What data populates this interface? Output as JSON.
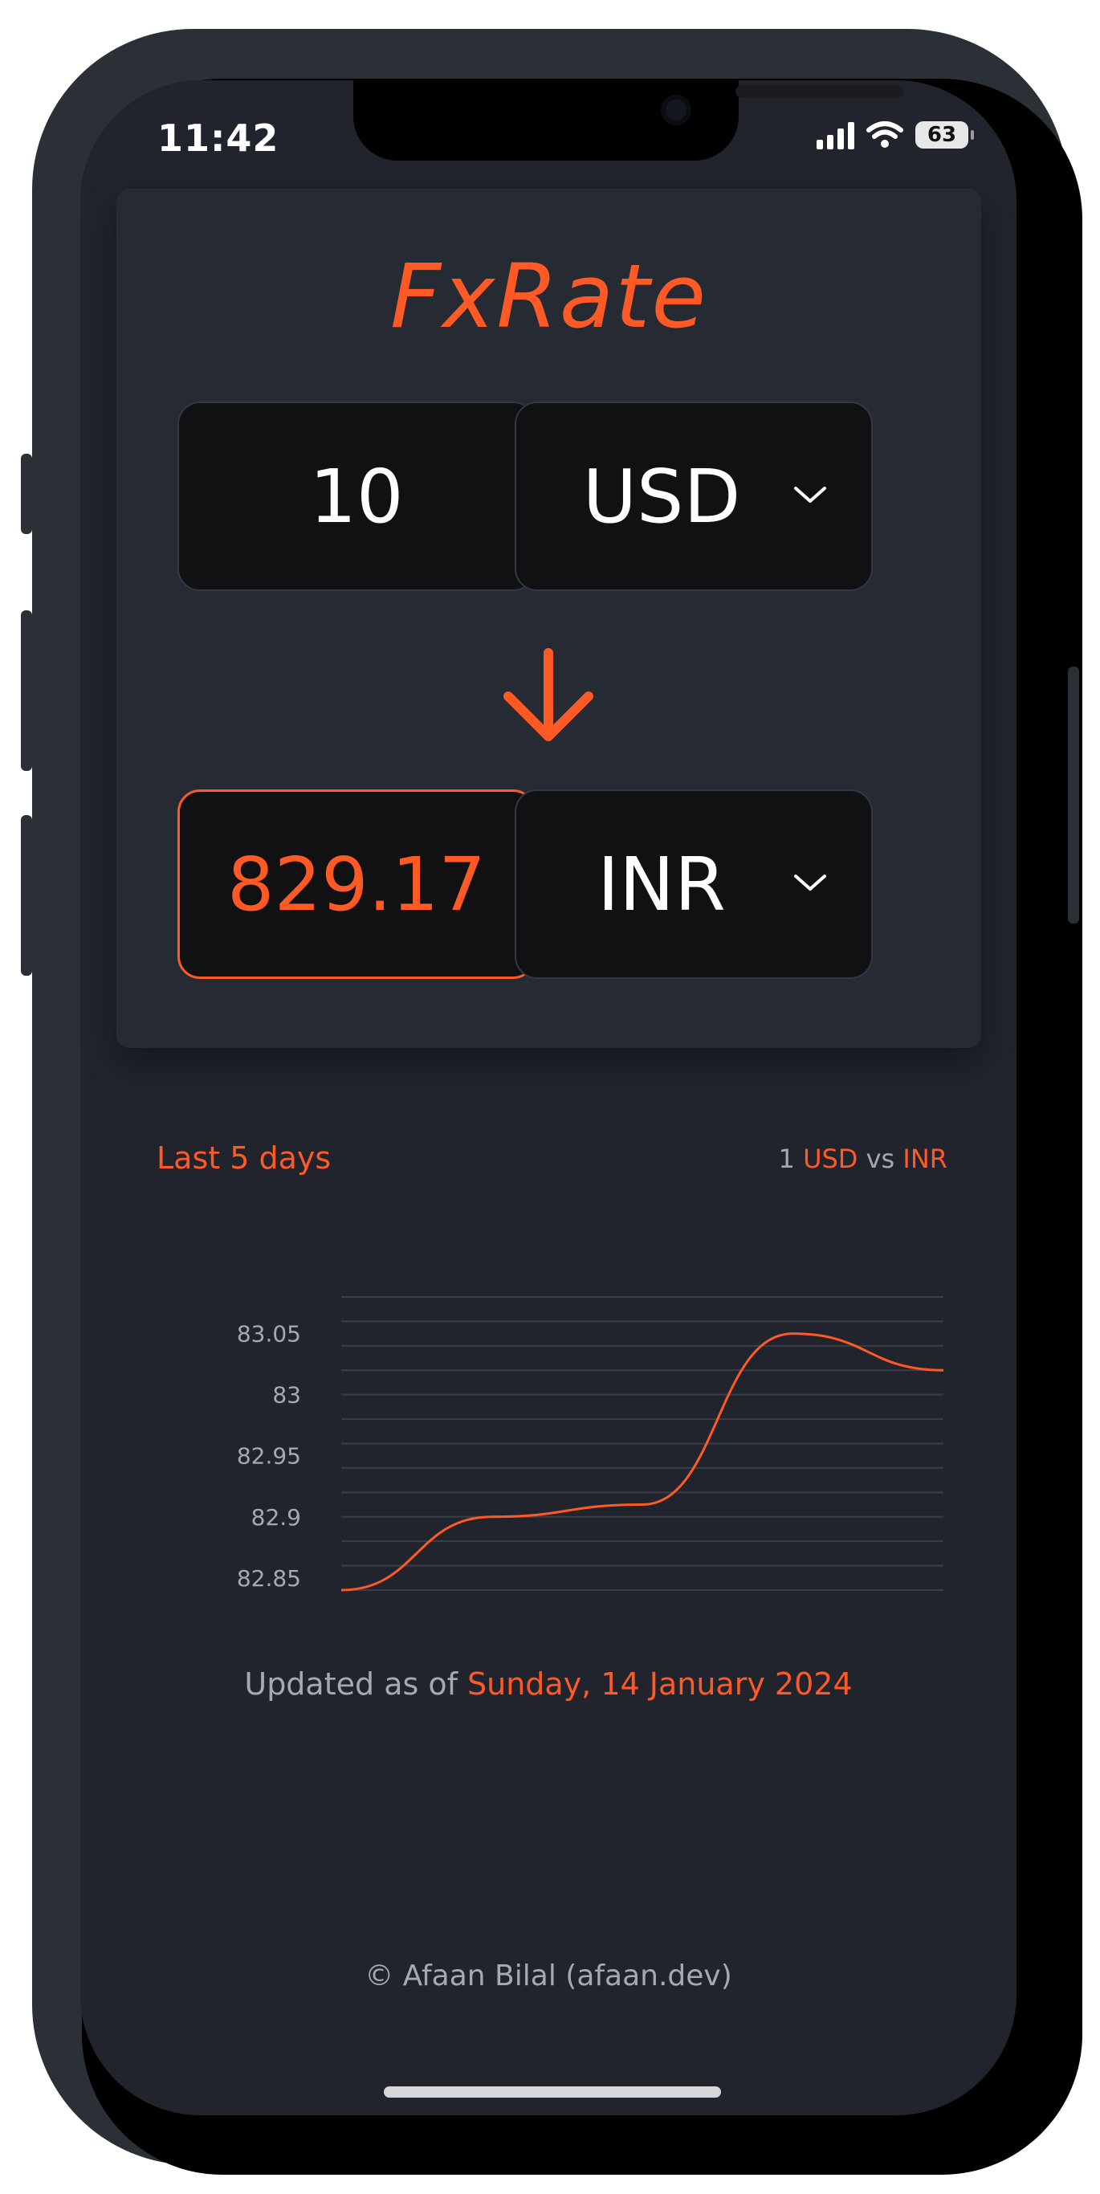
{
  "status_bar": {
    "time": "11:42",
    "battery": "63"
  },
  "app": {
    "title": "FxRate"
  },
  "converter": {
    "amount": "10",
    "from_currency": "USD",
    "result": "829.17",
    "to_currency": "INR"
  },
  "chart_header": {
    "label": "Last 5 days",
    "compare_prefix": "1",
    "compare_from": "USD",
    "compare_vs": "vs",
    "compare_to": "INR"
  },
  "chart_data": {
    "type": "line",
    "title": "Last 5 days",
    "xlabel": "",
    "ylabel": "",
    "ylim": [
      82.84,
      83.08
    ],
    "y_ticks": [
      "83.05",
      "83",
      "82.95",
      "82.9",
      "82.85"
    ],
    "x": [
      1,
      2,
      3,
      4,
      5
    ],
    "series": [
      {
        "name": "",
        "values": [
          82.84,
          82.9,
          82.91,
          83.05,
          83.02
        ]
      }
    ],
    "grid": true,
    "color": "#ff5a26"
  },
  "updated": {
    "label": "Updated as of",
    "date": "Sunday, 14 January 2024"
  },
  "footer": {
    "text": "© Afaan Bilal (afaan.dev)"
  },
  "colors": {
    "accent": "#ff5a26",
    "background": "#21242d",
    "card": "#262a33",
    "input": "#111113"
  }
}
